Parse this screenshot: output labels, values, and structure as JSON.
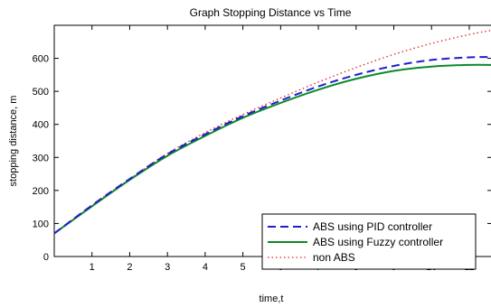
{
  "chart_data": {
    "type": "line",
    "title": "Graph Stopping Distance vs Time",
    "xlabel": "time,t",
    "ylabel": "stopping distance, m",
    "xlim": [
      0,
      11.6
    ],
    "ylim": [
      0,
      700
    ],
    "xticks": [
      1,
      2,
      3,
      4,
      5,
      6,
      7,
      8,
      9,
      10,
      11
    ],
    "yticks": [
      0,
      100,
      200,
      300,
      400,
      500,
      600
    ],
    "grid": false,
    "legend_position": "bottom-right",
    "series": [
      {
        "name": "ABS using PID controller",
        "color": "#1f1fcc",
        "style": "dashed",
        "x": [
          0,
          1,
          2,
          3,
          4,
          5,
          6,
          7,
          8,
          9,
          10,
          11,
          11.6
        ],
        "y": [
          70,
          155,
          235,
          310,
          370,
          425,
          472,
          515,
          550,
          577,
          595,
          603,
          604
        ]
      },
      {
        "name": "ABS using Fuzzy controller",
        "color": "#0a8a2a",
        "style": "solid",
        "x": [
          0,
          1,
          2,
          3,
          4,
          5,
          6,
          7,
          8,
          9,
          10,
          11,
          11.6
        ],
        "y": [
          70,
          152,
          232,
          305,
          365,
          420,
          465,
          505,
          538,
          562,
          575,
          580,
          580
        ]
      },
      {
        "name": "non ABS",
        "color": "#e0202a",
        "style": "dotted",
        "x": [
          0,
          1,
          2,
          3,
          4,
          5,
          6,
          7,
          8,
          9,
          10,
          11,
          11.6
        ],
        "y": [
          70,
          155,
          235,
          312,
          375,
          430,
          480,
          528,
          572,
          612,
          645,
          672,
          685
        ]
      }
    ]
  }
}
